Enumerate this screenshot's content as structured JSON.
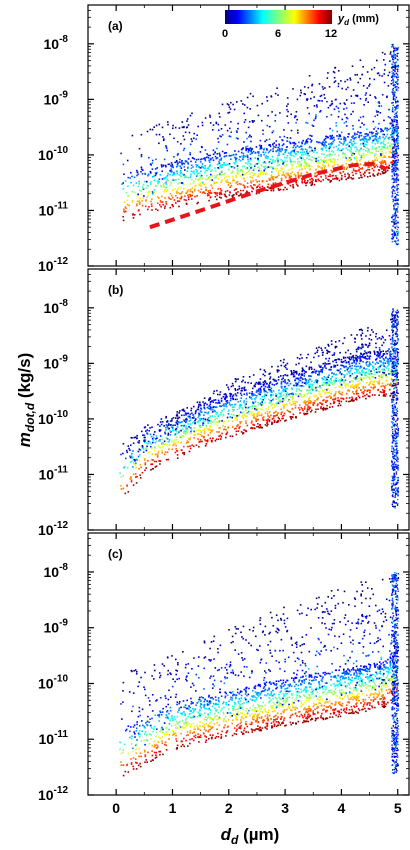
{
  "figure": {
    "ylabel_main": "m",
    "ylabel_sub": "dot,d",
    "ylabel_unit": " (kg/s)",
    "xlabel_main": "d",
    "xlabel_sub": "d",
    "xlabel_unit": " (µm)"
  },
  "colorbar": {
    "label_main": "y",
    "label_sub": "d",
    "label_unit": " (mm)",
    "ticks": [
      "0",
      "6",
      "12"
    ],
    "range": [
      0,
      12
    ],
    "colormap": "jet"
  },
  "chart_data": [
    {
      "type": "scatter",
      "panel_label": "(a)",
      "x_range": [
        -0.5,
        5.2
      ],
      "y_scale": "log",
      "y_range": [
        1e-12,
        5e-08
      ],
      "x_ticks": [
        "0",
        "1",
        "2",
        "3",
        "4",
        "5"
      ],
      "y_ticks": [
        {
          "base": "10",
          "exp": "-12"
        },
        {
          "base": "10",
          "exp": "-11"
        },
        {
          "base": "10",
          "exp": "-10"
        },
        {
          "base": "10",
          "exp": "-9"
        },
        {
          "base": "10",
          "exp": "-8"
        }
      ],
      "color_by": "y_d (mm)",
      "dense_envelope": [
        [
          0.1,
          1.5e-11
        ],
        [
          1.0,
          2.5e-11
        ],
        [
          2.0,
          4e-11
        ],
        [
          3.0,
          5.5e-11
        ],
        [
          4.0,
          8e-11
        ],
        [
          4.7,
          1e-10
        ],
        [
          4.95,
          1.5e-10
        ]
      ],
      "sparse_upper": [
        [
          0.5,
          3e-10
        ],
        [
          2.0,
          1e-09
        ],
        [
          3.5,
          3e-09
        ],
        [
          4.5,
          6e-09
        ],
        [
          4.95,
          9e-09
        ]
      ],
      "fit_line": {
        "style": "dashed",
        "color": "#e8141b",
        "points": [
          [
            0.6,
            5e-12
          ],
          [
            1.5,
            1e-11
          ],
          [
            2.5,
            2.2e-11
          ],
          [
            3.5,
            4.5e-11
          ],
          [
            4.2,
            6.5e-11
          ],
          [
            4.6,
            7e-11
          ],
          [
            4.8,
            5.5e-11
          ]
        ]
      }
    },
    {
      "type": "scatter",
      "panel_label": "(b)",
      "x_range": [
        -0.5,
        5.2
      ],
      "y_scale": "log",
      "y_range": [
        1e-12,
        5e-08
      ],
      "x_ticks": [
        "0",
        "1",
        "2",
        "3",
        "4",
        "5"
      ],
      "y_ticks": [
        {
          "base": "10",
          "exp": "-12"
        },
        {
          "base": "10",
          "exp": "-11"
        },
        {
          "base": "10",
          "exp": "-10"
        },
        {
          "base": "10",
          "exp": "-9"
        },
        {
          "base": "10",
          "exp": "-8"
        }
      ],
      "color_by": "y_d (mm)",
      "dense_envelope": [
        [
          0.1,
          8e-12
        ],
        [
          0.5,
          2.5e-11
        ],
        [
          1.5,
          7e-11
        ],
        [
          2.5,
          1.5e-10
        ],
        [
          3.5,
          3e-10
        ],
        [
          4.3,
          5e-10
        ],
        [
          4.8,
          6e-10
        ]
      ],
      "sparse_upper": [
        [
          0.5,
          5e-11
        ],
        [
          2.0,
          5e-10
        ],
        [
          3.5,
          2e-09
        ],
        [
          4.5,
          5e-09
        ],
        [
          4.95,
          8e-09
        ]
      ]
    },
    {
      "type": "scatter",
      "panel_label": "(c)",
      "x_range": [
        -0.5,
        5.2
      ],
      "y_scale": "log",
      "y_range": [
        1e-12,
        5e-08
      ],
      "x_ticks": [
        "0",
        "1",
        "2",
        "3",
        "4",
        "5"
      ],
      "y_ticks": [
        {
          "base": "10",
          "exp": "-12"
        },
        {
          "base": "10",
          "exp": "-11"
        },
        {
          "base": "10",
          "exp": "-10"
        },
        {
          "base": "10",
          "exp": "-9"
        },
        {
          "base": "10",
          "exp": "-8"
        }
      ],
      "color_by": "y_d (mm)",
      "dense_envelope": [
        [
          0.1,
          5e-12
        ],
        [
          1.0,
          1.5e-11
        ],
        [
          2.0,
          2.5e-11
        ],
        [
          3.0,
          4e-11
        ],
        [
          4.0,
          6e-11
        ],
        [
          4.7,
          8e-11
        ],
        [
          4.95,
          1.2e-10
        ]
      ],
      "sparse_upper": [
        [
          0.5,
          2e-10
        ],
        [
          2.0,
          1e-09
        ],
        [
          3.5,
          4e-09
        ],
        [
          4.5,
          8e-09
        ],
        [
          4.95,
          9e-09
        ]
      ]
    }
  ]
}
